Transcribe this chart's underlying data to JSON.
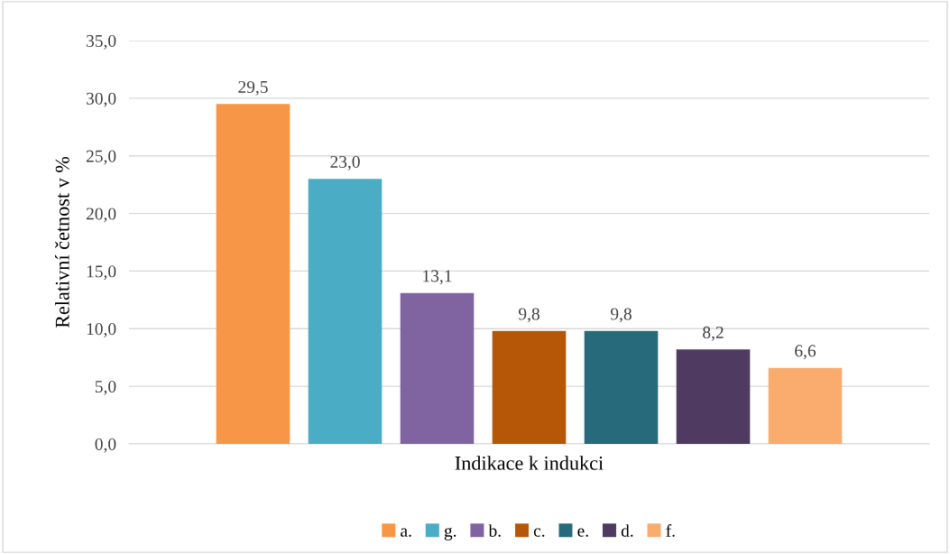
{
  "chart_data": {
    "type": "bar",
    "xlabel": "Indikace k indukci",
    "ylabel": "Relativní četnost v %",
    "categories": [
      null
    ],
    "series": [
      {
        "name": "a.",
        "color": "#f79646",
        "values": [
          29.5
        ],
        "value_labels": [
          "29,5"
        ]
      },
      {
        "name": "g.",
        "color": "#4bacc6",
        "values": [
          23.0
        ],
        "value_labels": [
          "23,0"
        ]
      },
      {
        "name": "b.",
        "color": "#8064a2",
        "values": [
          13.1
        ],
        "value_labels": [
          "13,1"
        ]
      },
      {
        "name": "c.",
        "color": "#b65708",
        "values": [
          9.8
        ],
        "value_labels": [
          "9,8"
        ]
      },
      {
        "name": "e.",
        "color": "#276a7c",
        "values": [
          9.8
        ],
        "value_labels": [
          "9,8"
        ]
      },
      {
        "name": "d.",
        "color": "#4f3b62",
        "values": [
          8.2
        ],
        "value_labels": [
          "8,2"
        ]
      },
      {
        "name": "f.",
        "color": "#f9ac6e",
        "values": [
          6.6
        ],
        "value_labels": [
          "6,6"
        ]
      }
    ],
    "ylim": [
      0,
      35
    ],
    "yticks": [
      {
        "value": 0,
        "label": "0,0"
      },
      {
        "value": 5,
        "label": "5,0"
      },
      {
        "value": 10,
        "label": "10,0"
      },
      {
        "value": 15,
        "label": "15,0"
      },
      {
        "value": 20,
        "label": "20,0"
      },
      {
        "value": 25,
        "label": "25,0"
      },
      {
        "value": 30,
        "label": "30,0"
      },
      {
        "value": 35,
        "label": "35,0"
      }
    ],
    "grid": "y",
    "legend": "bottom"
  }
}
